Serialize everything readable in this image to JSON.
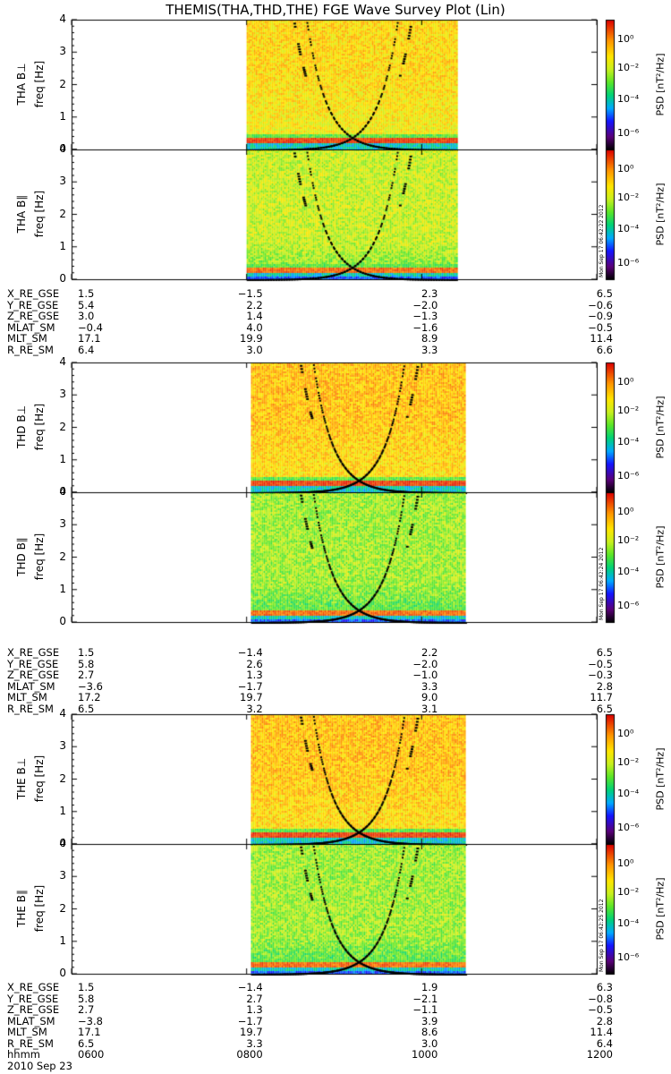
{
  "title": "THEMIS(THA,THD,THE) FGE Wave Survey Plot (Lin)",
  "probes": [
    {
      "panels": [
        {
          "name": "THA B⊥",
          "ylabel": "freq [Hz]",
          "stamp": ""
        },
        {
          "name": "THA B∥",
          "ylabel": "freq [Hz]",
          "stamp": "Mon Sep 17 06:42:22 2012"
        }
      ],
      "ephemeris": [
        {
          "label": "X_RE_GSE",
          "values": [
            "1.5",
            "−1.5",
            "2.3",
            "6.5"
          ]
        },
        {
          "label": "Y_RE_GSE",
          "values": [
            "5.4",
            "2.2",
            "−2.0",
            "−0.6"
          ]
        },
        {
          "label": "Z_RE_GSE",
          "values": [
            "3.0",
            "1.4",
            "−1.3",
            "−0.9"
          ]
        },
        {
          "label": "MLAT_SM",
          "values": [
            "−0.4",
            "4.0",
            "−1.6",
            "−0.5"
          ]
        },
        {
          "label": "MLT_SM",
          "values": [
            "17.1",
            "19.9",
            "8.9",
            "11.4"
          ]
        },
        {
          "label": "R_RE_SM",
          "values": [
            "6.4",
            "3.0",
            "3.3",
            "6.6"
          ]
        }
      ]
    },
    {
      "panels": [
        {
          "name": "THD B⊥",
          "ylabel": "freq [Hz]",
          "stamp": ""
        },
        {
          "name": "THD B∥",
          "ylabel": "freq [Hz]",
          "stamp": "Mon Sep 17 06:42:24 2012"
        }
      ],
      "ephemeris": [
        {
          "label": "X_RE_GSE",
          "values": [
            "1.5",
            "−1.4",
            "2.2",
            "6.5"
          ]
        },
        {
          "label": "Y_RE_GSE",
          "values": [
            "5.8",
            "2.6",
            "−2.0",
            "−0.5"
          ]
        },
        {
          "label": "Z_RE_GSE",
          "values": [
            "2.7",
            "1.3",
            "−1.0",
            "−0.3"
          ]
        },
        {
          "label": "MLAT_SM",
          "values": [
            "−3.6",
            "−1.7",
            "3.3",
            "2.8"
          ]
        },
        {
          "label": "MLT_SM",
          "values": [
            "17.2",
            "19.7",
            "9.0",
            "11.7"
          ]
        },
        {
          "label": "R_RE_SM",
          "values": [
            "6.5",
            "3.2",
            "3.1",
            "6.5"
          ]
        }
      ]
    },
    {
      "panels": [
        {
          "name": "THE B⊥",
          "ylabel": "freq [Hz]",
          "stamp": ""
        },
        {
          "name": "THE B∥",
          "ylabel": "freq [Hz]",
          "stamp": "Mon Sep 17 06:42:25 2012"
        }
      ],
      "ephemeris": [
        {
          "label": "X_RE_GSE",
          "values": [
            "1.5",
            "−1.4",
            "1.9",
            "6.3"
          ]
        },
        {
          "label": "Y_RE_GSE",
          "values": [
            "5.8",
            "2.7",
            "−2.1",
            "−0.8"
          ]
        },
        {
          "label": "Z_RE_GSE",
          "values": [
            "2.7",
            "1.3",
            "−1.1",
            "−0.5"
          ]
        },
        {
          "label": "MLAT_SM",
          "values": [
            "−3.8",
            "−1.7",
            "3.9",
            "2.8"
          ]
        },
        {
          "label": "MLT_SM",
          "values": [
            "17.1",
            "19.7",
            "8.6",
            "11.4"
          ]
        },
        {
          "label": "R_RE_SM",
          "values": [
            "6.5",
            "3.3",
            "3.0",
            "6.4"
          ]
        }
      ],
      "time_row": {
        "label": "hhmm",
        "values": [
          "0600",
          "0800",
          "1000",
          "1200"
        ]
      },
      "date": "2010 Sep 23"
    }
  ],
  "colorbar": {
    "label": "PSD [nT²/Hz]",
    "ticks": [
      "10⁰",
      "10⁻²",
      "10⁻⁴",
      "10⁻⁶"
    ]
  },
  "chart_data": {
    "type": "heatmap",
    "title": "THEMIS(THA,THD,THE) FGE Wave Survey Plot (Lin)",
    "x": {
      "label": "hhmm",
      "ticks": [
        "0600",
        "0800",
        "1000",
        "1200"
      ],
      "range_hours": [
        6,
        12
      ]
    },
    "y": {
      "label": "freq [Hz]",
      "range": [
        0,
        4
      ],
      "ticks": [
        0,
        1,
        2,
        3,
        4
      ],
      "scale": "linear"
    },
    "z": {
      "label": "PSD [nT²/Hz]",
      "scale": "log",
      "range": [
        1e-07,
        10
      ],
      "ticks": [
        1e-06,
        0.0001,
        0.01,
        1
      ]
    },
    "data_interval_hours": {
      "THA": [
        8.0,
        10.4
      ],
      "THD": [
        8.05,
        10.5
      ],
      "THE": [
        8.05,
        10.5
      ]
    },
    "overlay_curves": "gyrofrequency lines (dash-dot and dashed) rising toward perigee near 0900",
    "panels": [
      "THA B⊥",
      "THA B∥",
      "THD B⊥",
      "THD B∥",
      "THE B⊥",
      "THE B∥"
    ]
  }
}
